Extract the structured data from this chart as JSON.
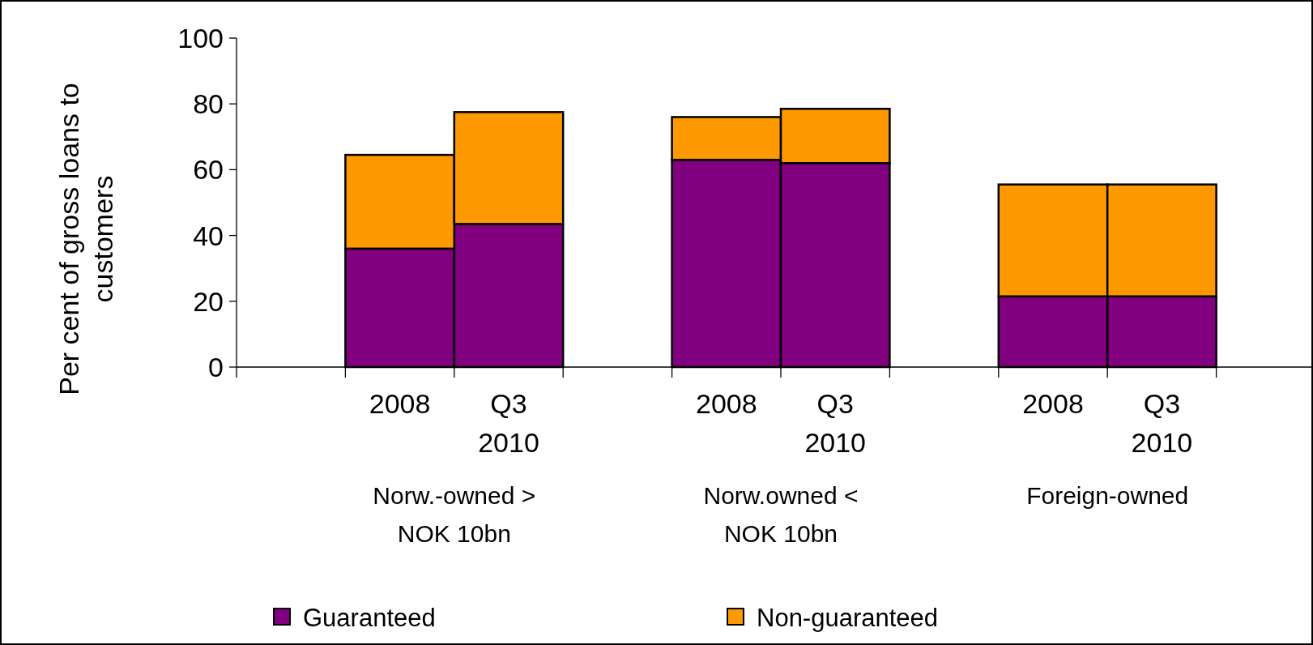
{
  "chart_data": {
    "type": "bar",
    "stacked": true,
    "ylabel": "Per cent of gross loans to customers",
    "categories": [
      null,
      "2008",
      "Q3 2010",
      null,
      "2008",
      "Q3 2010",
      null,
      "2008",
      "Q3 2010",
      null
    ],
    "series": [
      {
        "name": "Guaranteed",
        "color": "#800080",
        "values": [
          null,
          36,
          43.5,
          null,
          63,
          62,
          null,
          21.5,
          21.5,
          null
        ]
      },
      {
        "name": "Non-guaranteed",
        "color": "#ff9900",
        "values": [
          null,
          28.5,
          34,
          null,
          13,
          16.5,
          null,
          34,
          34,
          null
        ]
      }
    ],
    "annotations": [
      "Norw.-owned > NOK 10bn",
      "Norw.owned < NOK 10bn",
      "Foreign-owned"
    ],
    "ylim": [
      0,
      100
    ],
    "yticks": [
      0,
      20,
      40,
      60,
      80,
      100
    ],
    "legend": "bottom",
    "grid": false
  }
}
